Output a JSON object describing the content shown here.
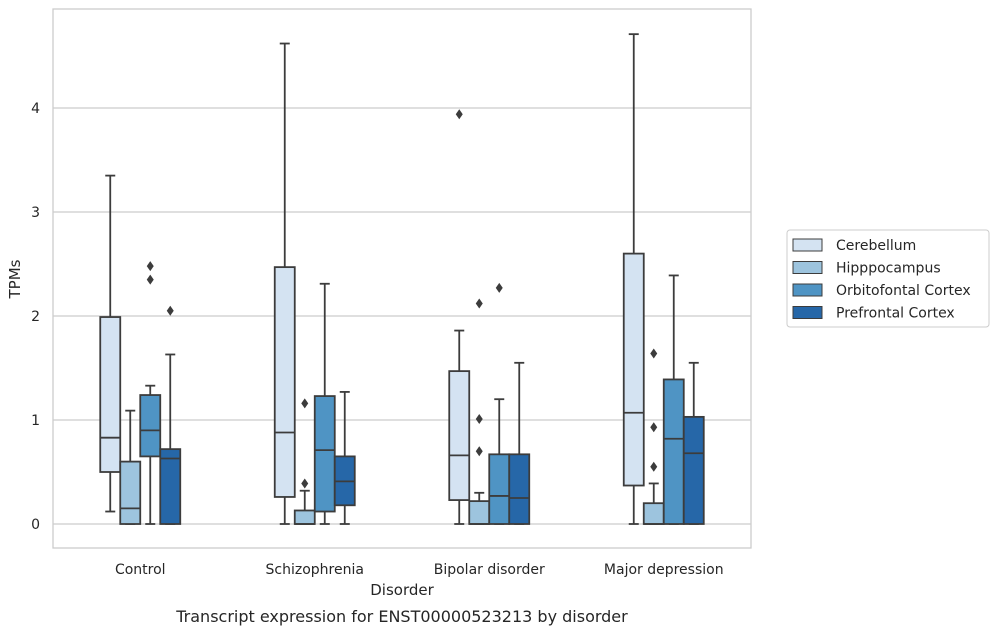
{
  "chart_data": {
    "type": "boxplot",
    "caption": "Transcript expression for ENST00000523213 by disorder",
    "xlabel": "Disorder",
    "ylabel": "TPMs",
    "ylim": [
      -0.23,
      4.95
    ],
    "yticks": [
      0,
      1,
      2,
      3,
      4
    ],
    "grid": "horizontal",
    "legend_placement": "right",
    "categories": [
      "Control",
      "Schizophrenia",
      "Bipolar disorder",
      "Major depression"
    ],
    "series": [
      {
        "name": "Cerebellum",
        "color": "#d4e3f2",
        "boxes": [
          {
            "whislo": 0.12,
            "q1": 0.5,
            "med": 0.83,
            "q3": 1.99,
            "whishi": 3.35,
            "fliers": []
          },
          {
            "whislo": 0.0,
            "q1": 0.26,
            "med": 0.88,
            "q3": 2.47,
            "whishi": 4.62,
            "fliers": []
          },
          {
            "whislo": 0.0,
            "q1": 0.23,
            "med": 0.66,
            "q3": 1.47,
            "whishi": 1.86,
            "fliers": [
              3.94
            ]
          },
          {
            "whislo": 0.0,
            "q1": 0.37,
            "med": 1.07,
            "q3": 2.6,
            "whishi": 4.71,
            "fliers": []
          }
        ]
      },
      {
        "name": "Hipppocampus",
        "color": "#9dc4de",
        "boxes": [
          {
            "whislo": 0.0,
            "q1": 0.0,
            "med": 0.15,
            "q3": 0.6,
            "whishi": 1.09,
            "fliers": []
          },
          {
            "whislo": 0.0,
            "q1": 0.0,
            "med": 0.0,
            "q3": 0.13,
            "whishi": 0.32,
            "fliers": [
              0.39,
              1.16
            ]
          },
          {
            "whislo": 0.0,
            "q1": 0.0,
            "med": 0.0,
            "q3": 0.22,
            "whishi": 0.3,
            "fliers": [
              0.7,
              1.01,
              2.12
            ]
          },
          {
            "whislo": 0.0,
            "q1": 0.0,
            "med": 0.0,
            "q3": 0.2,
            "whishi": 0.39,
            "fliers": [
              0.55,
              0.93,
              1.64
            ]
          }
        ]
      },
      {
        "name": "Orbitofontal Cortex",
        "color": "#4f94c4",
        "boxes": [
          {
            "whislo": 0.0,
            "q1": 0.65,
            "med": 0.9,
            "q3": 1.24,
            "whishi": 1.33,
            "fliers": [
              2.35,
              2.48
            ]
          },
          {
            "whislo": 0.0,
            "q1": 0.12,
            "med": 0.71,
            "q3": 1.23,
            "whishi": 2.31,
            "fliers": []
          },
          {
            "whislo": 0.0,
            "q1": 0.0,
            "med": 0.27,
            "q3": 0.67,
            "whishi": 1.2,
            "fliers": [
              2.27
            ]
          },
          {
            "whislo": 0.0,
            "q1": 0.0,
            "med": 0.82,
            "q3": 1.39,
            "whishi": 2.39,
            "fliers": []
          }
        ]
      },
      {
        "name": "Prefrontal Cortex",
        "color": "#2667a8",
        "boxes": [
          {
            "whislo": 0.0,
            "q1": 0.0,
            "med": 0.63,
            "q3": 0.72,
            "whishi": 1.63,
            "fliers": [
              2.05
            ]
          },
          {
            "whislo": 0.0,
            "q1": 0.18,
            "med": 0.41,
            "q3": 0.65,
            "whishi": 1.27,
            "fliers": []
          },
          {
            "whislo": 0.0,
            "q1": 0.0,
            "med": 0.25,
            "q3": 0.67,
            "whishi": 1.55,
            "fliers": []
          },
          {
            "whislo": 0.0,
            "q1": 0.0,
            "med": 0.68,
            "q3": 1.03,
            "whishi": 1.55,
            "fliers": []
          }
        ]
      }
    ]
  }
}
